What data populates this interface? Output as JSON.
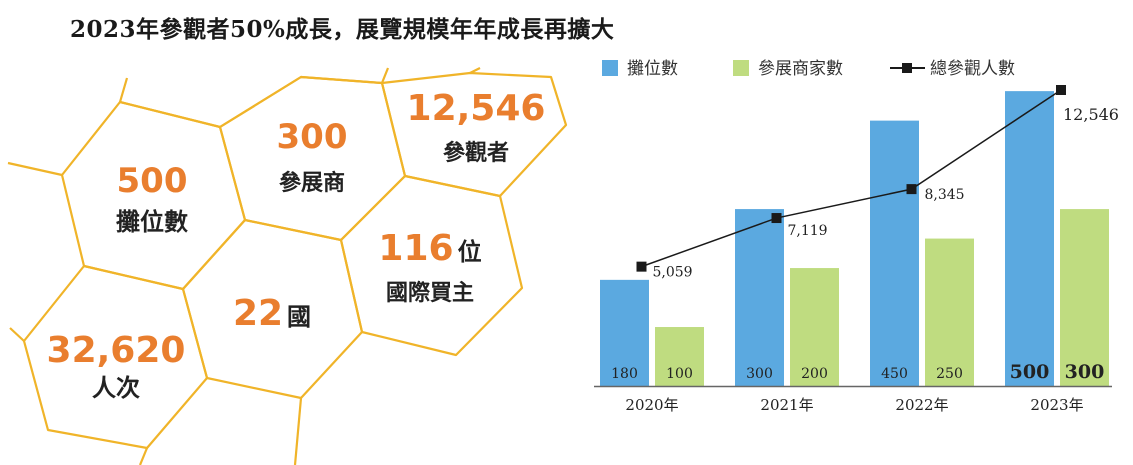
{
  "title": "2023年參觀者50%成長，展覽規模年年成長再擴大",
  "stats": [
    {
      "id": "booths",
      "value": "500",
      "label": "攤位數"
    },
    {
      "id": "exhibitors",
      "value": "300",
      "label": "參展商"
    },
    {
      "id": "visitors",
      "value": "12,546",
      "label": "參觀者"
    },
    {
      "id": "buyers",
      "value": "116",
      "suffix": "位",
      "label": "國際買主"
    },
    {
      "id": "countries",
      "value": "22",
      "suffix": "國",
      "label": ""
    },
    {
      "id": "attendance",
      "value": "32,620",
      "label": "人次"
    }
  ],
  "colors": {
    "hex_stroke": "#f0b429",
    "accent_number": "#e97e2e",
    "booth_bar": "#5ba9e0",
    "exhibitor_bar": "#bfdc80",
    "visitor_line": "#1a1a1a"
  },
  "chart_data": {
    "type": "bar",
    "categories": [
      "2020年",
      "2021年",
      "2022年",
      "2023年"
    ],
    "series": [
      {
        "name": "攤位數",
        "type": "bar",
        "values": [
          180,
          300,
          450,
          500
        ],
        "color": "#5ba9e0"
      },
      {
        "name": "參展商家數",
        "type": "bar",
        "values": [
          100,
          200,
          250,
          300
        ],
        "color": "#bfdc80"
      },
      {
        "name": "總參觀人數",
        "type": "line",
        "values": [
          5059,
          7119,
          8345,
          12546
        ],
        "value_labels": [
          "5,059",
          "7,119",
          "8,345",
          "12,546"
        ],
        "color": "#1a1a1a"
      }
    ],
    "bar_ylim": [
      0,
      510
    ],
    "line_ylim": [
      0,
      13700
    ],
    "legend_position": "top",
    "grid": false
  }
}
